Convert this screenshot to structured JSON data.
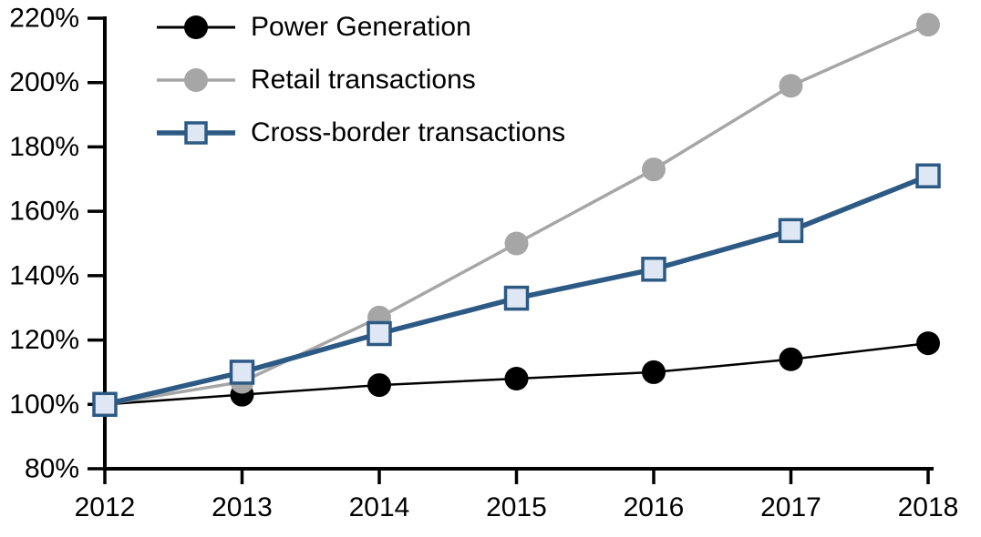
{
  "chart_data": {
    "type": "line",
    "title": "",
    "xlabel": "",
    "ylabel": "",
    "grid": false,
    "legend_position": "top-left",
    "categories": [
      "2012",
      "2013",
      "2014",
      "2015",
      "2016",
      "2017",
      "2018"
    ],
    "ylim": [
      80,
      220
    ],
    "y_ticks": {
      "values": [
        80,
        100,
        120,
        140,
        160,
        180,
        200,
        220
      ],
      "labels": [
        "80%",
        "100%",
        "120%",
        "140%",
        "160%",
        "180%",
        "200%",
        "220%"
      ]
    },
    "x_tick_labels": [
      "2012",
      "2013",
      "2014",
      "2015",
      "2016",
      "2017",
      "2018"
    ],
    "series": [
      {
        "name": "Power Generation",
        "color": "#000000",
        "marker": "circle",
        "marker_fill": "#000000",
        "line_width": 2.5,
        "values": [
          100,
          103,
          106,
          108,
          110,
          114,
          119
        ]
      },
      {
        "name": "Retail transactions",
        "color": "#A6A6A6",
        "marker": "circle",
        "marker_fill": "#A6A6A6",
        "line_width": 3.5,
        "values": [
          100,
          107,
          127,
          150,
          173,
          199,
          218
        ]
      },
      {
        "name": "Cross-border transactions",
        "color": "#2C5A84",
        "marker": "square",
        "marker_fill": "#DEE7F3",
        "line_width": 5.5,
        "values": [
          100,
          110,
          122,
          133,
          142,
          154,
          171
        ]
      }
    ],
    "axis_color": "#000000"
  }
}
